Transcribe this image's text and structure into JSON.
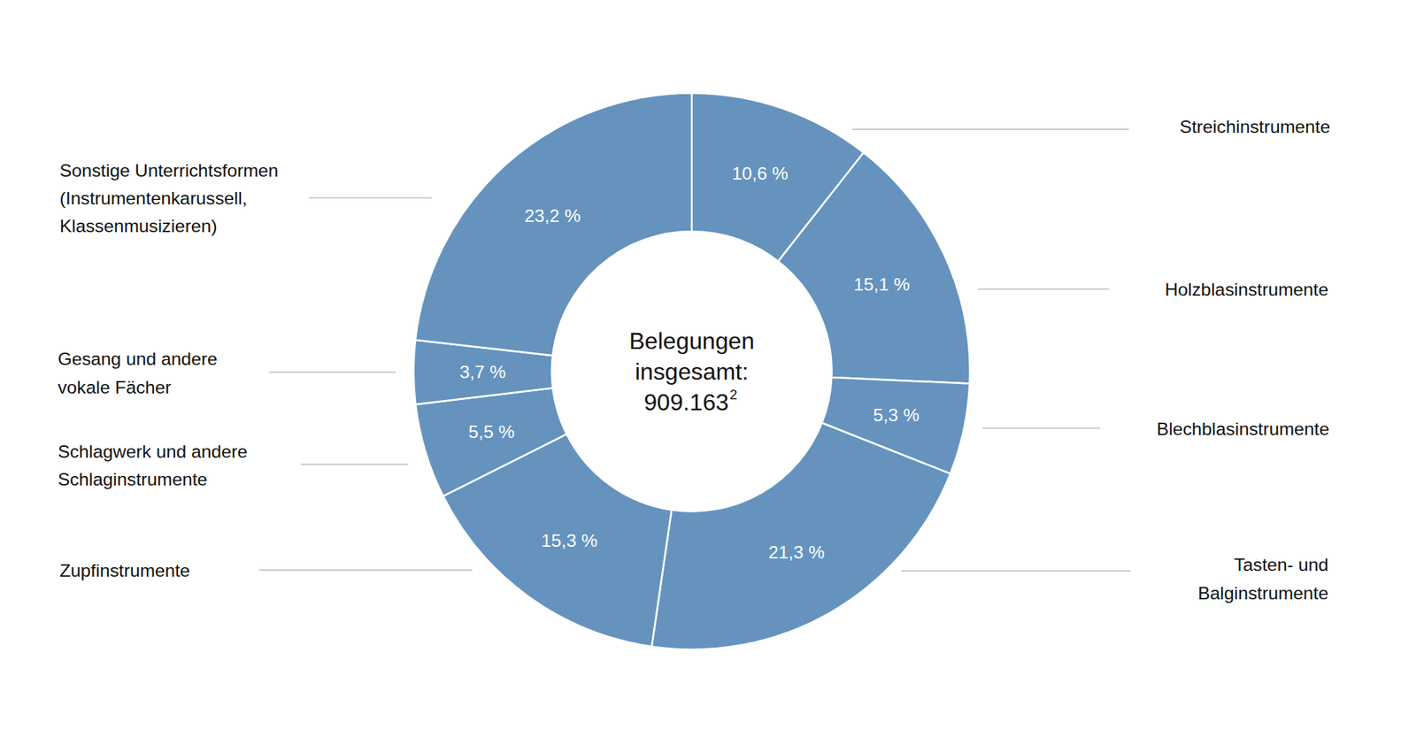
{
  "chart_data": {
    "type": "pie",
    "categories": [
      "Streichinstrumente",
      "Holzblasinstrumente",
      "Blechblasinstrumente",
      "Tasten- und\nBalginstrumente",
      "Zupfinstrumente",
      "Schlagwerk und andere\nSchlaginstrumente",
      "Gesang und andere\nvokale Fächer",
      "Sonstige Unterrichtsformen\n(Instrumentenkarussell,\nKlassenmusizieren)"
    ],
    "values": [
      10.6,
      15.1,
      5.3,
      21.3,
      15.3,
      5.5,
      3.7,
      23.2
    ],
    "value_labels": [
      "10,6 %",
      "15,1 %",
      "5,3 %",
      "21,3 %",
      "15,3 %",
      "5,5 %",
      "3,7 %",
      "23,2 %"
    ],
    "data_labels": true,
    "color": "#6593be",
    "center_label": "Belegungen\ninsgesamt:",
    "total": {
      "value": 909163,
      "label": "909.163",
      "footnote": "2"
    }
  }
}
